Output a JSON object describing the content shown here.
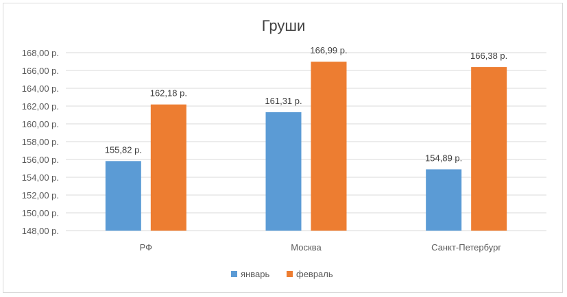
{
  "chart_data": {
    "type": "bar",
    "title": "Груши",
    "categories": [
      "РФ",
      "Москва",
      "Санкт-Петербург"
    ],
    "series": [
      {
        "name": "январь",
        "values": [
          155.82,
          161.31,
          154.89
        ],
        "labels": [
          "155,82 р.",
          "161,31 р.",
          "154,89 р."
        ],
        "color": "#5b9bd5"
      },
      {
        "name": "февраль",
        "values": [
          162.18,
          166.99,
          166.38
        ],
        "labels": [
          "162,18 р.",
          "166,99 р.",
          "166,38 р."
        ],
        "color": "#ed7d31"
      }
    ],
    "ylim": [
      148,
      168
    ],
    "ystep": 2,
    "ytick_labels": [
      "148,00 р.",
      "150,00 р.",
      "152,00 р.",
      "154,00 р.",
      "156,00 р.",
      "158,00 р.",
      "160,00 р.",
      "162,00 р.",
      "164,00 р.",
      "166,00 р.",
      "168,00 р."
    ],
    "grid": true,
    "legend": "bottom",
    "gridline_color": "#d9d9d9"
  }
}
